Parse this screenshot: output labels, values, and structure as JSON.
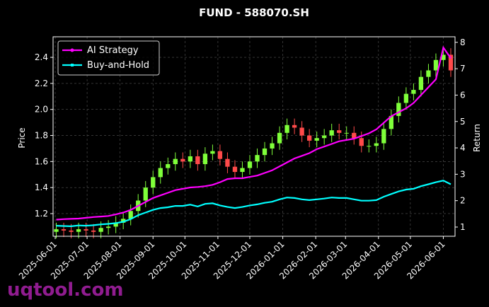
{
  "chart_data": {
    "type": "candlestick",
    "title": "FUND - 588070.SH",
    "ylabel": "Price",
    "y2label": "Return",
    "x": [
      "2025-06-02",
      "2025-06-09",
      "2025-06-16",
      "2025-06-23",
      "2025-06-30",
      "2025-07-07",
      "2025-07-14",
      "2025-07-21",
      "2025-07-28",
      "2025-08-04",
      "2025-08-11",
      "2025-08-18",
      "2025-08-25",
      "2025-09-01",
      "2025-09-08",
      "2025-09-15",
      "2025-09-22",
      "2025-09-29",
      "2025-10-06",
      "2025-10-13",
      "2025-10-20",
      "2025-10-27",
      "2025-11-03",
      "2025-11-10",
      "2025-11-17",
      "2025-11-24",
      "2025-12-01",
      "2025-12-08",
      "2025-12-15",
      "2025-12-22",
      "2025-12-29",
      "2026-01-05",
      "2026-01-12",
      "2026-01-19",
      "2026-01-26",
      "2026-02-02",
      "2026-02-09",
      "2026-02-16",
      "2026-02-23",
      "2026-03-02",
      "2026-03-09",
      "2026-03-16",
      "2026-03-23",
      "2026-03-30",
      "2026-04-06",
      "2026-04-13",
      "2026-04-20",
      "2026-04-27",
      "2026-05-04",
      "2026-05-11",
      "2026-05-18",
      "2026-05-25",
      "2026-06-01",
      "2026-06-08"
    ],
    "open": [
      1.06,
      1.08,
      1.07,
      1.06,
      1.08,
      1.07,
      1.06,
      1.09,
      1.1,
      1.13,
      1.16,
      1.22,
      1.3,
      1.4,
      1.48,
      1.55,
      1.58,
      1.62,
      1.6,
      1.64,
      1.58,
      1.66,
      1.68,
      1.62,
      1.56,
      1.52,
      1.55,
      1.6,
      1.65,
      1.7,
      1.74,
      1.82,
      1.88,
      1.86,
      1.8,
      1.76,
      1.78,
      1.8,
      1.84,
      1.82,
      1.82,
      1.78,
      1.72,
      1.72,
      1.74,
      1.85,
      1.95,
      2.05,
      2.12,
      2.15,
      2.25,
      2.3,
      2.38,
      2.42
    ],
    "high": [
      1.13,
      1.13,
      1.12,
      1.13,
      1.13,
      1.12,
      1.14,
      1.15,
      1.18,
      1.21,
      1.27,
      1.35,
      1.45,
      1.53,
      1.6,
      1.63,
      1.67,
      1.67,
      1.69,
      1.69,
      1.71,
      1.73,
      1.73,
      1.67,
      1.61,
      1.6,
      1.65,
      1.7,
      1.75,
      1.79,
      1.87,
      1.93,
      1.93,
      1.91,
      1.85,
      1.83,
      1.85,
      1.89,
      1.89,
      1.87,
      1.87,
      1.83,
      1.77,
      1.79,
      1.9,
      2.0,
      2.1,
      2.17,
      2.2,
      2.3,
      2.35,
      2.43,
      2.47,
      2.47
    ],
    "low": [
      1.01,
      1.02,
      1.01,
      1.01,
      1.02,
      1.01,
      1.01,
      1.04,
      1.05,
      1.08,
      1.11,
      1.17,
      1.25,
      1.35,
      1.43,
      1.5,
      1.53,
      1.55,
      1.55,
      1.53,
      1.53,
      1.61,
      1.57,
      1.51,
      1.47,
      1.47,
      1.5,
      1.55,
      1.6,
      1.65,
      1.69,
      1.77,
      1.81,
      1.75,
      1.71,
      1.71,
      1.73,
      1.75,
      1.77,
      1.77,
      1.73,
      1.67,
      1.67,
      1.67,
      1.69,
      1.8,
      1.9,
      2.0,
      2.07,
      2.1,
      2.2,
      2.25,
      2.33,
      2.25
    ],
    "close": [
      1.08,
      1.07,
      1.06,
      1.08,
      1.07,
      1.06,
      1.09,
      1.1,
      1.13,
      1.16,
      1.22,
      1.3,
      1.4,
      1.48,
      1.55,
      1.58,
      1.62,
      1.6,
      1.64,
      1.58,
      1.66,
      1.68,
      1.62,
      1.56,
      1.52,
      1.55,
      1.6,
      1.65,
      1.7,
      1.74,
      1.82,
      1.88,
      1.86,
      1.8,
      1.76,
      1.78,
      1.8,
      1.84,
      1.82,
      1.82,
      1.78,
      1.72,
      1.72,
      1.74,
      1.85,
      1.95,
      2.05,
      2.12,
      2.15,
      2.25,
      2.3,
      2.38,
      2.42,
      2.3
    ],
    "up_color": "#7fff3a",
    "down_color": "#ff4a4a",
    "series": [
      {
        "name": "AI Strategy",
        "color": "#ff00ff",
        "axis": "y2",
        "values": [
          1.28,
          1.3,
          1.31,
          1.32,
          1.35,
          1.38,
          1.4,
          1.42,
          1.48,
          1.55,
          1.65,
          1.8,
          1.95,
          2.1,
          2.2,
          2.3,
          2.4,
          2.45,
          2.5,
          2.52,
          2.55,
          2.6,
          2.7,
          2.82,
          2.85,
          2.85,
          2.9,
          2.95,
          3.05,
          3.15,
          3.3,
          3.45,
          3.6,
          3.7,
          3.8,
          3.95,
          4.05,
          4.15,
          4.25,
          4.3,
          4.35,
          4.45,
          4.55,
          4.7,
          4.95,
          5.2,
          5.35,
          5.5,
          5.7,
          6.0,
          6.3,
          6.6,
          7.8,
          7.4
        ]
      },
      {
        "name": "Buy-and-Hold",
        "color": "#00ffff",
        "axis": "y2",
        "values": [
          1.05,
          1.04,
          1.03,
          1.06,
          1.05,
          1.07,
          1.1,
          1.12,
          1.15,
          1.2,
          1.3,
          1.45,
          1.55,
          1.65,
          1.72,
          1.75,
          1.8,
          1.8,
          1.85,
          1.78,
          1.88,
          1.9,
          1.82,
          1.76,
          1.72,
          1.76,
          1.82,
          1.86,
          1.92,
          1.96,
          2.05,
          2.12,
          2.1,
          2.05,
          2.02,
          2.05,
          2.08,
          2.12,
          2.1,
          2.1,
          2.05,
          2.0,
          2.0,
          2.02,
          2.15,
          2.25,
          2.35,
          2.42,
          2.45,
          2.55,
          2.62,
          2.7,
          2.76,
          2.62
        ]
      }
    ],
    "xlim": [
      "2025-05-30",
      "2026-06-12"
    ],
    "xticks": [
      "2025-06-01",
      "2025-07-01",
      "2025-08-01",
      "2025-09-01",
      "2025-10-01",
      "2025-11-01",
      "2025-12-01",
      "2026-01-01",
      "2026-02-01",
      "2026-03-01",
      "2026-04-01",
      "2026-05-01",
      "2026-06-01"
    ],
    "ylim": [
      1.026,
      2.558
    ],
    "yticks": [
      1.2,
      1.4,
      1.6,
      1.8,
      {
        "value": 2,
        "label": "2.0"
      },
      2.2,
      2.4
    ],
    "y2lim": [
      0.651,
      8.21
    ],
    "y2ticks": [
      1,
      2,
      3,
      4,
      5,
      6,
      7,
      8
    ],
    "grid": true,
    "legend": "upper left"
  },
  "watermark": "uqtool.com"
}
